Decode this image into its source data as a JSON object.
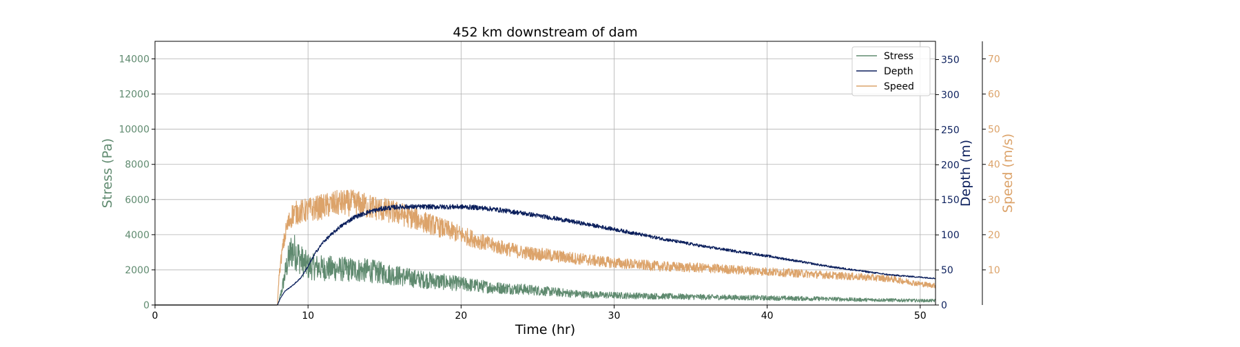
{
  "colors": {
    "stress": "#5f8a6f",
    "depth": "#0b1f5c",
    "speed": "#dca36a",
    "grid": "#b0b0b0",
    "frame": "#000000"
  },
  "chart_data": {
    "type": "line",
    "title": "452 km downstream of dam",
    "xlabel": "Time (hr)",
    "xlim": [
      0,
      51
    ],
    "xticks": [
      0,
      10,
      20,
      30,
      40,
      50
    ],
    "grid": true,
    "legend_position": "top-right",
    "axes": {
      "left": {
        "label": "Stress (Pa)",
        "lim": [
          0,
          15000
        ],
        "ticks": [
          0,
          2000,
          4000,
          6000,
          8000,
          10000,
          12000,
          14000
        ]
      },
      "right1": {
        "label": "Depth (m)",
        "lim": [
          0,
          376
        ],
        "ticks": [
          0,
          50,
          100,
          150,
          200,
          250,
          300,
          350
        ]
      },
      "right2": {
        "label": "Speed (m/s)",
        "lim": [
          0,
          75
        ],
        "ticks": [
          10,
          20,
          30,
          40,
          50,
          60,
          70
        ]
      }
    },
    "series": [
      {
        "name": "Stress",
        "axis": "left",
        "color_key": "stress",
        "x": [
          0,
          8.0,
          8.1,
          8.3,
          8.6,
          8.9,
          9.2,
          9.6,
          10,
          11,
          12,
          13,
          14,
          15,
          16,
          17,
          18,
          19,
          20,
          22,
          24,
          26,
          28,
          30,
          33,
          36,
          40,
          44,
          46,
          48,
          50,
          51
        ],
        "values": [
          0,
          0,
          200,
          900,
          2200,
          3100,
          3000,
          2500,
          2200,
          2100,
          2050,
          2000,
          1950,
          1800,
          1650,
          1500,
          1400,
          1300,
          1200,
          1000,
          900,
          750,
          600,
          550,
          500,
          450,
          400,
          350,
          300,
          280,
          250,
          250
        ],
        "noise": 0.35
      },
      {
        "name": "Depth",
        "axis": "right1",
        "color_key": "depth",
        "x": [
          0,
          8.0,
          8.2,
          8.5,
          9,
          9.5,
          10,
          10.5,
          11,
          12,
          13,
          14,
          15,
          16,
          17,
          18,
          19,
          20,
          21,
          22,
          24,
          26,
          28,
          30,
          33,
          36,
          40,
          44,
          48,
          51
        ],
        "values": [
          0,
          0,
          10,
          20,
          28,
          38,
          55,
          75,
          90,
          110,
          125,
          133,
          138,
          140,
          140,
          140,
          140,
          140,
          139,
          137,
          131,
          124,
          116,
          108,
          95,
          83,
          70,
          55,
          43,
          38
        ],
        "noise": 0.025
      },
      {
        "name": "Speed",
        "axis": "right2",
        "color_key": "speed",
        "x": [
          0,
          8.0,
          8.1,
          8.3,
          8.6,
          9,
          10,
          11,
          12,
          13,
          14,
          15,
          16,
          18,
          20,
          22,
          24,
          26,
          28,
          30,
          33,
          36,
          40,
          44,
          46,
          48,
          50,
          51
        ],
        "values": [
          0,
          0,
          8,
          15,
          22,
          26,
          27,
          28,
          29,
          29,
          28,
          27,
          26,
          23,
          20,
          17,
          15,
          14,
          13,
          12,
          11,
          10.5,
          9.5,
          8.5,
          8,
          7.5,
          6,
          5.5
        ],
        "noise": 0.13
      }
    ]
  }
}
